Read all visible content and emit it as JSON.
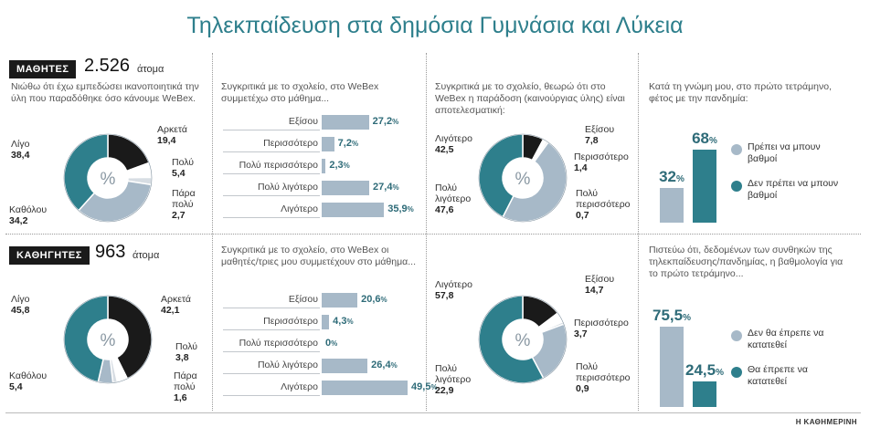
{
  "title": "Τηλεκπαίδευση στα δημόσια Γυμνάσια και Λύκεια",
  "source": "Η ΚΑΘΗΜΕΡΙΝΗ",
  "colors": {
    "accent": "#2e7f8c",
    "dark": "#1a1a1a",
    "light": "#a7b9c8",
    "mid": "#7f97ad"
  },
  "students": {
    "label": "ΜΑΘΗΤΕΣ",
    "count": "2.526",
    "unit": "άτομα",
    "satisfaction": {
      "question": "Νιώθω ότι έχω εμπεδώσει ικανοποιητικά την ύλη που παραδόθηκε όσο κάνουμε WeBex.",
      "slices": [
        {
          "name": "Αρκετά",
          "value": 19.4,
          "display": "19,4",
          "color": "#1a1a1a"
        },
        {
          "name": "Πολύ",
          "value": 5.4,
          "display": "5,4",
          "color": "#ffffff"
        },
        {
          "name": "Πάρα πολύ",
          "value": 2.7,
          "display": "2,7",
          "color": "#d7dde3"
        },
        {
          "name": "Καθόλου",
          "value": 34.2,
          "display": "34,2",
          "color": "#a7b9c8"
        },
        {
          "name": "Λίγο",
          "value": 38.4,
          "display": "38,4",
          "color": "#2e7f8c"
        }
      ]
    },
    "participation": {
      "question": "Συγκριτικά με το σχολείο, στο WeBex συμμετέχω στο μάθημα...",
      "bars": [
        {
          "label": "Εξίσου",
          "value": 27.2,
          "display": "27,2"
        },
        {
          "label": "Περισσότερο",
          "value": 7.2,
          "display": "7,2"
        },
        {
          "label": "Πολύ περισσότερο",
          "value": 2.3,
          "display": "2,3"
        },
        {
          "label": "Πολύ λιγότερο",
          "value": 27.4,
          "display": "27,4"
        },
        {
          "label": "Λιγότερο",
          "value": 35.9,
          "display": "35,9"
        }
      ]
    },
    "effectiveness": {
      "question": "Συγκριτικά με το σχολείο, θεωρώ ότι στο WeBex η παράδοση (καινούργιας ύλης) είναι αποτελεσματική:",
      "slices": [
        {
          "name": "Εξίσου",
          "value": 7.8,
          "display": "7,8",
          "color": "#1a1a1a"
        },
        {
          "name": "Περισσότερο",
          "value": 1.4,
          "display": "1,4",
          "color": "#ffffff"
        },
        {
          "name": "Πολύ περισσότερο",
          "value": 0.7,
          "display": "0,7",
          "color": "#d7dde3"
        },
        {
          "name": "Πολύ λιγότερο",
          "value": 47.6,
          "display": "47,6",
          "color": "#a7b9c8"
        },
        {
          "name": "Λιγότερο",
          "value": 42.5,
          "display": "42,5",
          "color": "#2e7f8c"
        }
      ]
    },
    "grading": {
      "question": "Κατά τη γνώμη μου, στο πρώτο τετράμηνο, φέτος με την πανδημία:",
      "bars": [
        {
          "label": "Πρέπει να μπουν βαθμοί",
          "value": 32,
          "display": "32",
          "color": "#a7b9c8"
        },
        {
          "label": "Δεν πρέπει να μπουν βαθμοί",
          "value": 68,
          "display": "68",
          "color": "#2e7f8c"
        }
      ]
    }
  },
  "teachers": {
    "label": "ΚΑΘΗΓΗΤΕΣ",
    "count": "963",
    "unit": "άτομα",
    "satisfaction": {
      "slices": [
        {
          "name": "Αρκετά",
          "value": 42.1,
          "display": "42,1",
          "color": "#1a1a1a"
        },
        {
          "name": "Πολύ",
          "value": 3.8,
          "display": "3,8",
          "color": "#ffffff"
        },
        {
          "name": "Πάρα πολύ",
          "value": 1.6,
          "display": "1,6",
          "color": "#d7dde3"
        },
        {
          "name": "Καθόλου",
          "value": 5.4,
          "display": "5,4",
          "color": "#a7b9c8"
        },
        {
          "name": "Λίγο",
          "value": 45.8,
          "display": "45,8",
          "color": "#2e7f8c"
        }
      ]
    },
    "participation": {
      "question": "Συγκριτικά με το σχολείο, στο WeBex οι μαθητές/τριες μου συμμετέχουν στο μάθημα...",
      "bars": [
        {
          "label": "Εξίσου",
          "value": 20.6,
          "display": "20,6"
        },
        {
          "label": "Περισσότερο",
          "value": 4.3,
          "display": "4,3"
        },
        {
          "label": "Πολύ περισσότερο",
          "value": 0,
          "display": "0"
        },
        {
          "label": "Πολύ λιγότερο",
          "value": 26.4,
          "display": "26,4"
        },
        {
          "label": "Λιγότερο",
          "value": 49.5,
          "display": "49,5"
        }
      ]
    },
    "effectiveness": {
      "slices": [
        {
          "name": "Εξίσου",
          "value": 14.7,
          "display": "14,7",
          "color": "#1a1a1a"
        },
        {
          "name": "Περισσότερο",
          "value": 3.7,
          "display": "3,7",
          "color": "#ffffff"
        },
        {
          "name": "Πολύ περισσότερο",
          "value": 0.9,
          "display": "0,9",
          "color": "#d7dde3"
        },
        {
          "name": "Πολύ λιγότερο",
          "value": 22.9,
          "display": "22,9",
          "color": "#a7b9c8"
        },
        {
          "name": "Λιγότερο",
          "value": 57.8,
          "display": "57,8",
          "color": "#2e7f8c"
        }
      ]
    },
    "grading": {
      "question": "Πιστεύω ότι, δεδομένων των συνθηκών της τηλεκπαίδευσης/πανδημίας, η βαθμολογία για το πρώτο τετράμηνο...",
      "bars": [
        {
          "label": "Δεν θα έπρεπε να κατατεθεί",
          "value": 75.5,
          "display": "75,5",
          "color": "#a7b9c8"
        },
        {
          "label": "Θα έπρεπε να κατατεθεί",
          "value": 24.5,
          "display": "24,5",
          "color": "#2e7f8c"
        }
      ]
    }
  },
  "chart_data": [
    {
      "type": "pie",
      "title": "",
      "categories": [
        "Αρκετά",
        "Πολύ",
        "Πάρα πολύ",
        "Καθόλου",
        "Λίγο"
      ],
      "values": [
        19.4,
        5.4,
        2.7,
        34.2,
        38.4
      ]
    },
    {
      "type": "bar",
      "title": "",
      "categories": [
        "Εξίσου",
        "Περισσότερο",
        "Πολύ περισσότερο",
        "Πολύ λιγότερο",
        "Λιγότερο"
      ],
      "values": [
        27.2,
        7.2,
        2.3,
        27.4,
        35.9
      ]
    },
    {
      "type": "pie",
      "title": "",
      "categories": [
        "Εξίσου",
        "Περισσότερο",
        "Πολύ περισσότερο",
        "Πολύ λιγότερο",
        "Λιγότερο"
      ],
      "values": [
        7.8,
        1.4,
        0.7,
        47.6,
        42.5
      ]
    },
    {
      "type": "bar",
      "title": "",
      "categories": [
        "Πρέπει να μπουν βαθμοί",
        "Δεν πρέπει να μπουν βαθμοί"
      ],
      "values": [
        32,
        68
      ]
    },
    {
      "type": "pie",
      "title": "",
      "categories": [
        "Αρκετά",
        "Πολύ",
        "Πάρα πολύ",
        "Καθόλου",
        "Λίγο"
      ],
      "values": [
        42.1,
        3.8,
        1.6,
        5.4,
        45.8
      ]
    },
    {
      "type": "bar",
      "title": "",
      "categories": [
        "Εξίσου",
        "Περισσότερο",
        "Πολύ περισσότερο",
        "Πολύ λιγότερο",
        "Λιγότερο"
      ],
      "values": [
        20.6,
        4.3,
        0,
        26.4,
        49.5
      ]
    },
    {
      "type": "pie",
      "title": "",
      "categories": [
        "Εξίσου",
        "Περισσότερο",
        "Πολύ περισσότερο",
        "Πολύ λιγότερο",
        "Λιγότερο"
      ],
      "values": [
        14.7,
        3.7,
        0.9,
        22.9,
        57.8
      ]
    },
    {
      "type": "bar",
      "title": "",
      "categories": [
        "Δεν θα έπρεπε να κατατεθεί",
        "Θα έπρεπε να κατατεθεί"
      ],
      "values": [
        75.5,
        24.5
      ]
    }
  ]
}
